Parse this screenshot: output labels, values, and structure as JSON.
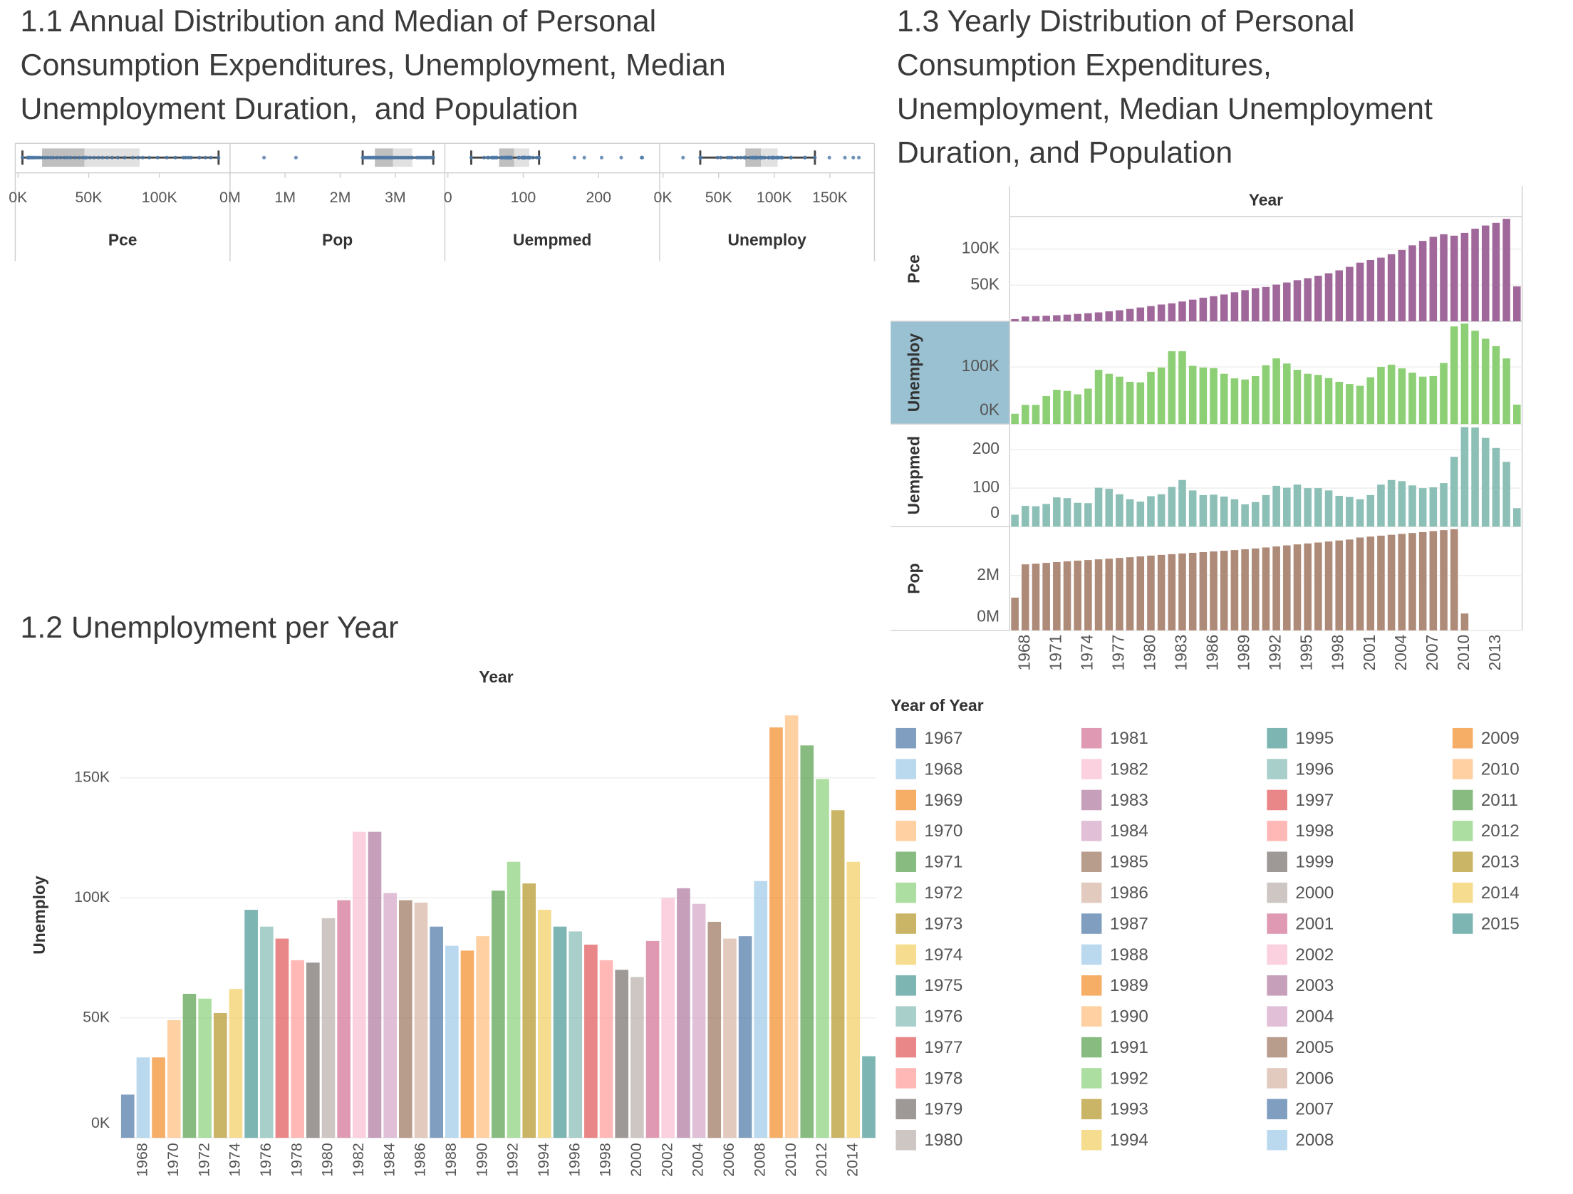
{
  "chart_data": [
    {
      "type": "box",
      "title": "1.1 Annual Distribution and Median of Personal Consumption Expenditures, Unemployment, Median Unemployment Duration,  and Population",
      "series": [
        {
          "name": "Pce",
          "min": 3086,
          "q1": 17000,
          "median": 47000,
          "q3": 86000,
          "max": 141888,
          "xlim": [
            -2000,
            150000
          ],
          "xticks": [
            {
              "value": 0,
              "label": "0K"
            },
            {
              "value": 50000,
              "label": "50K"
            },
            {
              "value": 100000,
              "label": "100K"
            }
          ]
        },
        {
          "name": "Pop",
          "min": 2408000,
          "q1": 2630000,
          "median": 2960000,
          "q3": 3310000,
          "max": 3690000,
          "xlim": [
            0,
            3900000
          ],
          "xticks": [
            {
              "value": 0,
              "label": "0M"
            },
            {
              "value": 1000000,
              "label": "1M"
            },
            {
              "value": 2000000,
              "label": "2M"
            },
            {
              "value": 3000000,
              "label": "3M"
            }
          ]
        },
        {
          "name": "Uempmed",
          "min": 31,
          "q1": 68,
          "median": 88,
          "q3": 108,
          "max": 121,
          "xlim": [
            -4,
            281
          ],
          "xticks": [
            0,
            100,
            200
          ]
        },
        {
          "name": "Unemploy",
          "min": 33500,
          "q1": 74000,
          "median": 88000,
          "q3": 103000,
          "max": 136500,
          "xlim": [
            -3000,
            190000
          ],
          "xticks": [
            {
              "value": 0,
              "label": "0K"
            },
            {
              "value": 50000,
              "label": "50K"
            },
            {
              "value": 100000,
              "label": "100K"
            },
            {
              "value": 150000,
              "label": "150K"
            }
          ]
        }
      ]
    },
    {
      "type": "bar",
      "title": "1.2 Unemployment per Year",
      "x_label": "Year",
      "y_label": "Unemploy",
      "categories": [
        null,
        "1968",
        null,
        "1970",
        null,
        "1972",
        null,
        "1974",
        null,
        "1976",
        null,
        "1978",
        null,
        "1980",
        null,
        "1982",
        null,
        "1984",
        null,
        "1986",
        null,
        "1988",
        null,
        "1990",
        null,
        "1992",
        null,
        "1994",
        null,
        "1996",
        null,
        "1998",
        null,
        "2000",
        null,
        "2002",
        null,
        "2004",
        null,
        "2006",
        null,
        "2008",
        null,
        "2010",
        null,
        "2012",
        null,
        "2014",
        null
      ],
      "values": [
        18000,
        33500,
        33500,
        49000,
        60000,
        58000,
        52000,
        62000,
        95000,
        88000,
        83000,
        74000,
        73000,
        91500,
        99000,
        127500,
        127500,
        102000,
        99000,
        98000,
        88000,
        80000,
        78000,
        84000,
        103000,
        115000,
        106000,
        95000,
        88000,
        86000,
        80500,
        74000,
        70000,
        67000,
        82000,
        100000,
        104000,
        97500,
        90000,
        83000,
        84000,
        107000,
        171000,
        176000,
        163500,
        149500,
        136500,
        115000,
        34000
      ],
      "colors": [
        "#4e79a7",
        "#a0cbe8",
        "#f28e2b",
        "#ffbe7d",
        "#59a14f",
        "#8cd17d",
        "#b6992d",
        "#f1ce63",
        "#499894",
        "#86bcb6",
        "#e15759",
        "#ff9d9a",
        "#79706e",
        "#bab0ac",
        "#d37295",
        "#fabfd2",
        "#b07aa1",
        "#d4a6c8",
        "#9d7660",
        "#d7b5a6",
        "#4e79a7",
        "#a0cbe8",
        "#f28e2b",
        "#ffbe7d",
        "#59a14f",
        "#8cd17d",
        "#b6992d",
        "#f1ce63",
        "#499894",
        "#86bcb6",
        "#e15759",
        "#ff9d9a",
        "#79706e",
        "#bab0ac",
        "#d37295",
        "#fabfd2",
        "#b07aa1",
        "#d4a6c8",
        "#9d7660",
        "#d7b5a6",
        "#4e79a7",
        "#a0cbe8",
        "#f28e2b",
        "#ffbe7d",
        "#59a14f",
        "#8cd17d",
        "#b6992d",
        "#f1ce63",
        "#499894"
      ],
      "ylim": [
        0,
        186000
      ],
      "yticks": [
        {
          "value": 0,
          "label": "0K"
        },
        {
          "value": 50000,
          "label": "50K"
        },
        {
          "value": 100000,
          "label": "100K"
        },
        {
          "value": 150000,
          "label": "150K"
        }
      ],
      "grid": true,
      "legend": {
        "title": "Year of Year",
        "items": [
          "1967",
          "1968",
          "1969",
          "1970",
          "1971",
          "1972",
          "1973",
          "1974",
          "1975",
          "1976",
          "1977",
          "1978",
          "1979",
          "1980",
          "1981",
          "1982",
          "1983",
          "1984",
          "1985",
          "1986",
          "1987",
          "1988",
          "1989",
          "1990",
          "1991",
          "1992",
          "1993",
          "1994",
          "1995",
          "1996",
          "1997",
          "1998",
          "1999",
          "2000",
          "2001",
          "2002",
          "2003",
          "2004",
          "2005",
          "2006",
          "2007",
          "2008",
          "2009",
          "2010",
          "2011",
          "2012",
          "2013",
          "2014",
          "2015"
        ]
      }
    },
    {
      "type": "bar",
      "title": "1.3 Yearly Distribution of Personal Consumption Expenditures, Unemployment, Median Unemployment Duration, and Population",
      "x_label": "Year",
      "categories": [
        null,
        "1968",
        null,
        null,
        "1971",
        null,
        null,
        "1974",
        null,
        null,
        "1977",
        null,
        null,
        "1980",
        null,
        null,
        "1983",
        null,
        null,
        "1986",
        null,
        null,
        "1989",
        null,
        null,
        "1992",
        null,
        null,
        "1995",
        null,
        null,
        "1998",
        null,
        null,
        "2001",
        null,
        null,
        "2004",
        null,
        null,
        "2007",
        null,
        null,
        "2010",
        null,
        null,
        "2013",
        null,
        null
      ],
      "grid": true,
      "series": [
        {
          "name": "Pce",
          "color": "#a0689a",
          "ylim": [
            0,
            145000
          ],
          "yticks": [
            {
              "value": 50000,
              "label": "50K"
            },
            {
              "value": 100000,
              "label": "100K"
            }
          ],
          "values": [
            3086,
            6684,
            7250,
            7764,
            8412,
            9240,
            10224,
            11196,
            12360,
            13800,
            15336,
            17136,
            19116,
            21060,
            23244,
            24888,
            27444,
            29976,
            32676,
            34776,
            37104,
            40164,
            43116,
            45912,
            47520,
            50820,
            53724,
            56916,
            59700,
            63084,
            66564,
            70560,
            75396,
            81204,
            84876,
            88176,
            92880,
            98784,
            105228,
            111324,
            116952,
            120600,
            118560,
            122424,
            128268,
            132612,
            136344,
            141888,
            48308
          ]
        },
        {
          "name": "Unemploy",
          "color": "#8ccf74",
          "ylim": [
            0,
            180000
          ],
          "yticks": [
            {
              "value": 0,
              "label": "0K"
            },
            {
              "value": 100000,
              "label": "100K"
            }
          ],
          "values": [
            18000,
            33500,
            33500,
            49000,
            60000,
            58000,
            52000,
            62000,
            95000,
            88000,
            83000,
            74000,
            73000,
            91500,
            99000,
            127500,
            127500,
            102000,
            99000,
            98000,
            88000,
            80000,
            78000,
            84000,
            103000,
            115000,
            106000,
            95000,
            88000,
            86000,
            80500,
            74000,
            70000,
            67000,
            82000,
            100000,
            104000,
            97500,
            90000,
            83000,
            84000,
            107000,
            171000,
            176000,
            163500,
            149500,
            136500,
            115000,
            34000
          ]
        },
        {
          "name": "Uempmed",
          "color": "#8cbfb6",
          "ylim": [
            0,
            266
          ],
          "yticks": [
            0,
            100,
            200
          ],
          "values": [
            31,
            54,
            53,
            59,
            76,
            74,
            62,
            61,
            101,
            98,
            84,
            71,
            65,
            79,
            84,
            103,
            121,
            94,
            82,
            83,
            78,
            71,
            58,
            64,
            82,
            106,
            101,
            109,
            100,
            100,
            94,
            80,
            77,
            71,
            82,
            109,
            121,
            118,
            107,
            100,
            102,
            113,
            181,
            258,
            257,
            230,
            204,
            168,
            48
          ]
        },
        {
          "name": "Pop",
          "color": "#ae8a78",
          "ylim": [
            0,
            3780000
          ],
          "yticks": [
            {
              "value": 0,
              "label": "0M"
            },
            {
              "value": 2000000,
              "label": "2M"
            }
          ],
          "values": [
            1196000,
            2408000,
            2432000,
            2461000,
            2492000,
            2519000,
            2543000,
            2566000,
            2591000,
            2615000,
            2641000,
            2668000,
            2697000,
            2727000,
            2754000,
            2780000,
            2805000,
            2829000,
            2853000,
            2879000,
            2904000,
            2929000,
            2957000,
            2988000,
            3024000,
            3062000,
            3099000,
            3135000,
            3170000,
            3204000,
            3241000,
            3278000,
            3313000,
            3386000,
            3420000,
            3454000,
            3486000,
            3518000,
            3550000,
            3584000,
            3620000,
            3655000,
            3690000,
            617000,
            null,
            null,
            null,
            null,
            null
          ]
        }
      ]
    }
  ]
}
